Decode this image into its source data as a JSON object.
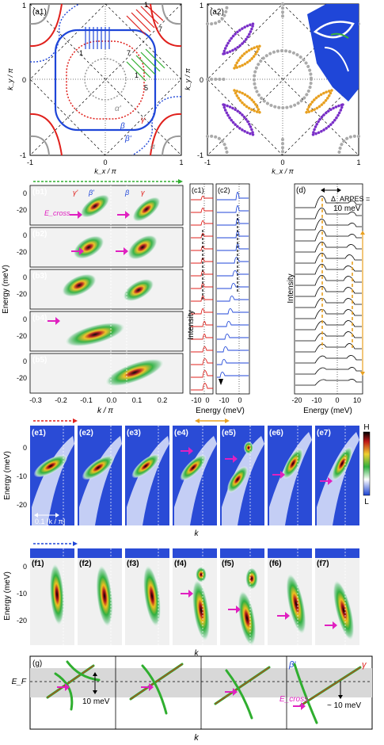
{
  "panel_a1": {
    "tag": "(a1)",
    "xlabel": "k_x / π",
    "ylabel": "k_y / π",
    "xticks": [
      "-1",
      "0",
      "1"
    ],
    "yticks": [
      "1",
      "0",
      "-1"
    ],
    "band_labels": [
      "α'",
      "β",
      "β'",
      "γ",
      "α"
    ],
    "cut_labels": [
      "1",
      "7",
      "1",
      "7",
      "1",
      "5"
    ]
  },
  "panel_a2": {
    "tag": "(a2)",
    "xlabel": "k_x / π",
    "ylabel": "k_y / π",
    "xticks": [
      "-1",
      "0",
      "1"
    ],
    "yticks": [
      "1",
      "0",
      "-1"
    ]
  },
  "panel_b": {
    "tags": [
      "(b1)",
      "(b2)",
      "(b3)",
      "(b4)",
      "(b5)"
    ],
    "band_labels": [
      "γ'",
      "β'",
      "β",
      "γ"
    ],
    "ecross_label": "E_cross",
    "ylabel": "Energy (meV)",
    "yticks": [
      "0",
      "-20"
    ],
    "xlabel": "k / π",
    "xticks": [
      "-0.3",
      "-0.2",
      "-0.1",
      "0.0",
      "0.1",
      "0.2"
    ]
  },
  "panel_c": {
    "tags": [
      "(c1)",
      "(c2)"
    ],
    "ylabel": "Intensity",
    "xlabel": "Energy (meV)",
    "xticks": [
      "-10",
      "0",
      "-10",
      "0"
    ]
  },
  "panel_d": {
    "tag": "(d)",
    "ylabel": "Intensity",
    "xlabel": "Energy (meV)",
    "xticks": [
      "-20",
      "-10",
      "0",
      "10"
    ],
    "delta_label": "Δ_ARPES =",
    "delta_value": "10 meV"
  },
  "panel_e": {
    "tags": [
      "(e1)",
      "(e2)",
      "(e3)",
      "(e4)",
      "(e5)",
      "(e6)",
      "(e7)"
    ],
    "ylabel": "Energy (meV)",
    "yticks": [
      "0",
      "-10",
      "-20"
    ],
    "xlabel": "k",
    "scale_label": "0.1 [k / π]",
    "colorbar": [
      "H",
      "L"
    ]
  },
  "panel_f": {
    "tags": [
      "(f1)",
      "(f2)",
      "(f3)",
      "(f4)",
      "(f5)",
      "(f6)",
      "(f7)"
    ],
    "ylabel": "Energy (meV)",
    "yticks": [
      "0",
      "-10",
      "-20"
    ],
    "xlabel": "k"
  },
  "panel_g": {
    "tag": "(g)",
    "ef_label": "E_F",
    "gap_label": "10 meV",
    "band_labels": [
      "β'",
      "γ"
    ],
    "ecross_label": "E_cross",
    "shift_label": "~ 10 meV",
    "xlabel": "k"
  },
  "colors": {
    "red": "#e0201c",
    "blue": "#1f46d8",
    "green": "#2fae2f",
    "orange": "#e8a020",
    "purple": "#7a2fc8",
    "magenta": "#e020c0",
    "gray": "#9a9a9a"
  }
}
